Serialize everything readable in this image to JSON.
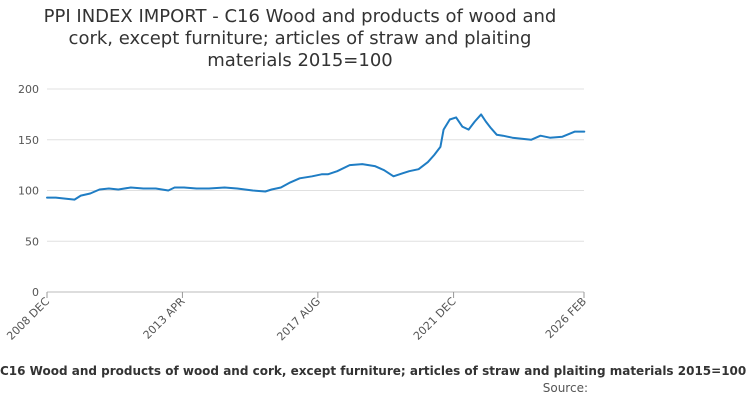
{
  "chart_data": {
    "type": "line",
    "title_lines": [
      "PPI INDEX IMPORT - C16 Wood and products of wood and",
      "cork, except furniture; articles of straw and plaiting",
      "materials 2015=100"
    ],
    "series": [
      {
        "name": "C16 Wood and products of wood and cork, except furniture; articles of straw and plaiting materials 2015=100",
        "color": "#1f7dc4",
        "x": [
          2008.92,
          2009.2,
          2009.5,
          2009.8,
          2010.0,
          2010.3,
          2010.6,
          2010.9,
          2011.2,
          2011.6,
          2012.0,
          2012.4,
          2012.8,
          2013.0,
          2013.3,
          2013.7,
          2014.1,
          2014.6,
          2015.0,
          2015.5,
          2015.9,
          2016.1,
          2016.4,
          2016.7,
          2017.0,
          2017.4,
          2017.7,
          2017.9,
          2018.2,
          2018.6,
          2019.0,
          2019.4,
          2019.7,
          2020.0,
          2020.3,
          2020.5,
          2020.8,
          2021.1,
          2021.3,
          2021.5,
          2021.6,
          2021.8,
          2022.0,
          2022.2,
          2022.4,
          2022.6,
          2022.8,
          2022.95,
          2023.1,
          2023.3,
          2023.5,
          2023.8,
          2024.1,
          2024.4,
          2024.7,
          2025.0,
          2025.4,
          2025.8,
          2026.1
        ],
        "y": [
          93,
          93,
          92,
          91,
          95,
          97,
          101,
          102,
          101,
          103,
          102,
          102,
          100,
          103,
          103,
          102,
          102,
          103,
          102,
          100,
          99,
          101,
          103,
          108,
          112,
          114,
          116,
          116,
          119,
          125,
          126,
          124,
          120,
          114,
          117,
          119,
          121,
          128,
          135,
          143,
          160,
          170,
          172,
          163,
          160,
          168,
          175,
          168,
          162,
          155,
          154,
          152,
          151,
          150,
          154,
          152,
          153,
          158,
          158
        ]
      }
    ],
    "xaxis": {
      "min": 2008.92,
      "max": 2026.09,
      "ticks": [
        {
          "value": 2008.92,
          "label": "2008 DEC"
        },
        {
          "value": 2013.25,
          "label": "2013 APR"
        },
        {
          "value": 2017.58,
          "label": "2017 AUG"
        },
        {
          "value": 2021.92,
          "label": "2021 DEC"
        },
        {
          "value": 2026.09,
          "label": "2026 FEB"
        }
      ]
    },
    "yaxis": {
      "min": 0,
      "max": 200,
      "ticks": [
        0,
        50,
        100,
        150,
        200
      ]
    },
    "grid": true,
    "legend_position": "bottom",
    "source_label": "Source:"
  }
}
